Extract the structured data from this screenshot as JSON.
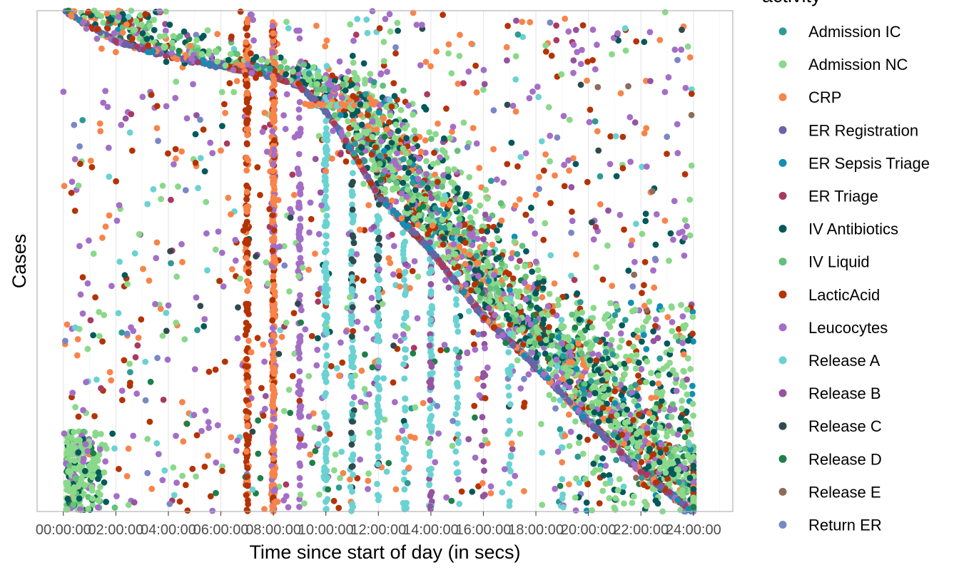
{
  "chart_data": {
    "type": "scatter",
    "title": "",
    "xlabel": "Time since start of day (in secs)",
    "ylabel": "Cases",
    "legend_title": "activity",
    "legend_position": "right",
    "grid": true,
    "x_tick_labels": [
      "00:00:00",
      "02:00:00",
      "04:00:00",
      "06:00:00",
      "08:00:00",
      "10:00:00",
      "12:00:00",
      "14:00:00",
      "16:00:00",
      "18:00:00",
      "20:00:00",
      "22:00:00",
      "24:00:00"
    ],
    "xlim_hours": [
      -1,
      25.5
    ],
    "y_ticks_shown": false,
    "series": [
      {
        "name": "Admission IC",
        "color": "#2e9a93",
        "approx_points": 120
      },
      {
        "name": "Admission NC",
        "color": "#8ad98a",
        "approx_points": 900
      },
      {
        "name": "CRP",
        "color": "#f8844a",
        "approx_points": 600
      },
      {
        "name": "ER Registration",
        "color": "#6764a8",
        "approx_points": 700
      },
      {
        "name": "ER Sepsis Triage",
        "color": "#128fb0",
        "approx_points": 220
      },
      {
        "name": "ER Triage",
        "color": "#a83a61",
        "approx_points": 160
      },
      {
        "name": "IV Antibiotics",
        "color": "#03595a",
        "approx_points": 420
      },
      {
        "name": "IV Liquid",
        "color": "#63c17c",
        "approx_points": 260
      },
      {
        "name": "LacticAcid",
        "color": "#b43305",
        "approx_points": 420
      },
      {
        "name": "Leucocytes",
        "color": "#a46ec7",
        "approx_points": 700
      },
      {
        "name": "Release A",
        "color": "#6ad2d2",
        "approx_points": 520
      },
      {
        "name": "Release B",
        "color": "#9553a0",
        "approx_points": 90
      },
      {
        "name": "Release C",
        "color": "#2d4b4c",
        "approx_points": 60
      },
      {
        "name": "Release D",
        "color": "#1c8048",
        "approx_points": 70
      },
      {
        "name": "Release E",
        "color": "#8d6c5c",
        "approx_points": 8
      },
      {
        "name": "Return ER",
        "color": "#7a87c6",
        "approx_points": 50
      }
    ]
  }
}
